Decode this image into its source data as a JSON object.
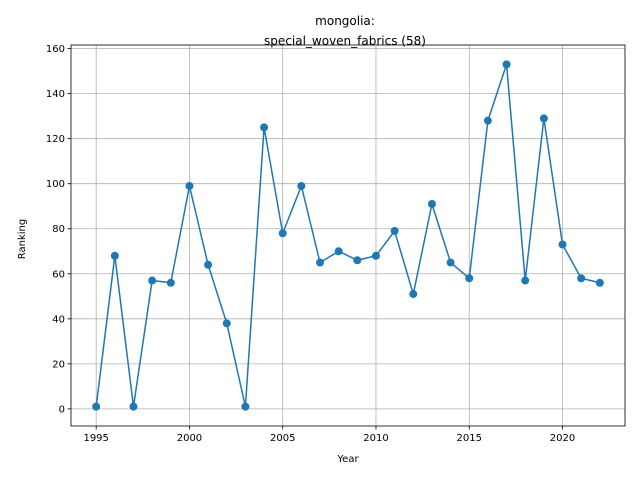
{
  "chart_data": {
    "type": "line",
    "title_line1": "mongolia:",
    "title_line2": "special_woven_fabrics (58)",
    "xlabel": "Year",
    "ylabel": "Ranking",
    "xlim": [
      1993.65,
      2023.35
    ],
    "ylim": [
      -7.6,
      161.6
    ],
    "xticks": [
      1995,
      2000,
      2005,
      2010,
      2015,
      2020
    ],
    "yticks": [
      0,
      20,
      40,
      60,
      80,
      100,
      120,
      140,
      160
    ],
    "grid": true,
    "series": [
      {
        "name": "Ranking",
        "color": "#1f77b4",
        "x": [
          1995,
          1996,
          1997,
          1998,
          1999,
          2000,
          2001,
          2002,
          2003,
          2004,
          2005,
          2006,
          2007,
          2008,
          2009,
          2010,
          2011,
          2012,
          2013,
          2014,
          2015,
          2016,
          2017,
          2018,
          2019,
          2020,
          2021,
          2022
        ],
        "y": [
          1,
          68,
          1,
          57,
          56,
          99,
          64,
          38,
          1,
          125,
          78,
          99,
          65,
          70,
          66,
          68,
          79,
          51,
          91,
          65,
          58,
          128,
          153,
          57,
          129,
          73,
          58,
          56
        ]
      }
    ]
  }
}
